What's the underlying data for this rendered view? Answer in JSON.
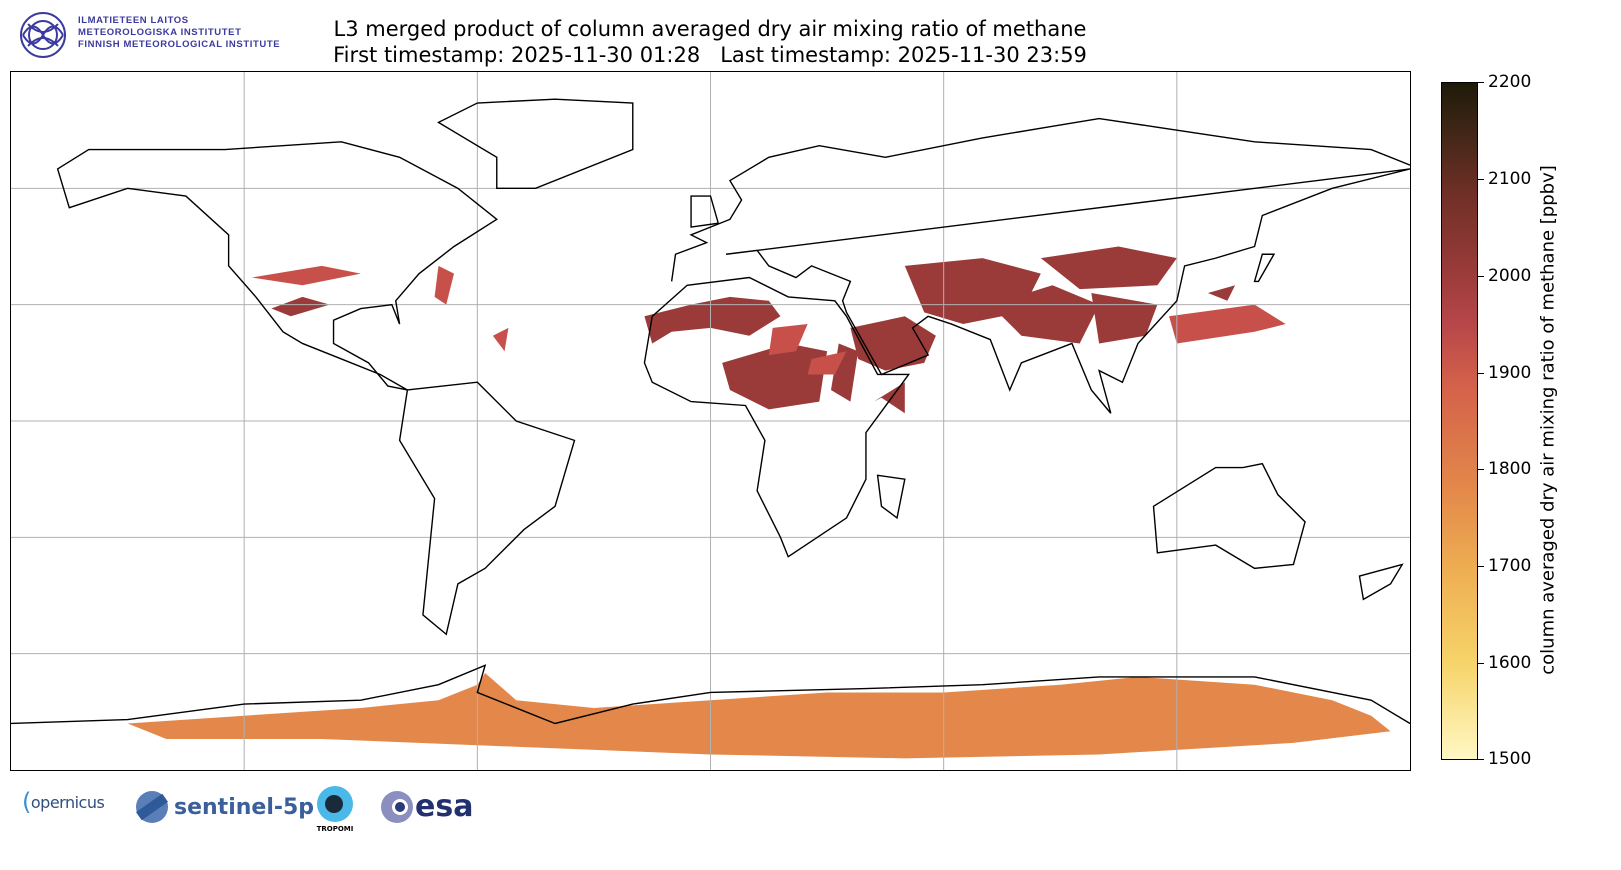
{
  "title": {
    "line1": "L3 merged product of column averaged dry air mixing ratio of methane",
    "line2": "First timestamp: 2025-11-30 01:28   Last timestamp: 2025-11-30 23:59"
  },
  "institute": {
    "lines": [
      "ILMATIETEEN LAITOS",
      "METEOROLOGISKA INSTITUTET",
      "FINNISH METEOROLOGICAL INSTITUTE"
    ]
  },
  "colorbar": {
    "label": "column averaged dry air mixing ratio of methane [ppbv]",
    "ticks": [
      "2200",
      "2100",
      "2000",
      "1900",
      "1800",
      "1700",
      "1600",
      "1500"
    ],
    "range": [
      1500,
      2200
    ]
  },
  "logos": {
    "copernicus": "opernicus",
    "sentinel": "sentinel-5p",
    "tropomi": "TROPOMI",
    "esa": "esa"
  },
  "colors": {
    "land_line": "#000000",
    "grid": "#b0b0b0",
    "high": "#9a3b3a",
    "antarctic": "#e3884a"
  }
}
